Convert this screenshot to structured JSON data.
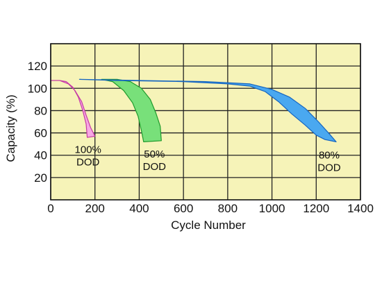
{
  "chart_data": {
    "type": "area",
    "title": "",
    "xlabel": "Cycle Number",
    "ylabel": "Capacity (%)",
    "xlim": [
      0,
      1400
    ],
    "ylim": [
      0,
      140
    ],
    "xticks": [
      0,
      200,
      400,
      600,
      800,
      1000,
      1200,
      1400
    ],
    "yticks": [
      20,
      40,
      60,
      80,
      100,
      120
    ],
    "grid": true,
    "legend": "none",
    "colors": {
      "plot_background": "#f6f3b8",
      "grid": "#222222",
      "frame": "#111111"
    },
    "series": [
      {
        "label_lines": [
          "100%",
          "DOD"
        ],
        "fill": "#f7a7e4",
        "edge": "#c53ba4",
        "upper": [
          [
            0,
            107
          ],
          [
            40,
            107
          ],
          [
            80,
            104
          ],
          [
            110,
            98
          ],
          [
            140,
            88
          ],
          [
            160,
            76
          ],
          [
            180,
            65
          ],
          [
            200,
            57
          ]
        ],
        "lower": [
          [
            200,
            57
          ],
          [
            165,
            56
          ],
          [
            160,
            68
          ],
          [
            145,
            80
          ],
          [
            125,
            92
          ],
          [
            100,
            101
          ],
          [
            70,
            106
          ],
          [
            40,
            107
          ],
          [
            0,
            107
          ]
        ]
      },
      {
        "label_lines": [
          "50%",
          "DOD"
        ],
        "fill": "#78e07a",
        "edge": "#1f9a2c",
        "upper": [
          [
            230,
            108
          ],
          [
            300,
            108
          ],
          [
            360,
            106
          ],
          [
            410,
            100
          ],
          [
            450,
            90
          ],
          [
            475,
            78
          ],
          [
            495,
            66
          ],
          [
            500,
            53
          ]
        ],
        "lower": [
          [
            500,
            53
          ],
          [
            420,
            52
          ],
          [
            410,
            62
          ],
          [
            395,
            75
          ],
          [
            370,
            87
          ],
          [
            330,
            98
          ],
          [
            280,
            106
          ],
          [
            230,
            108
          ]
        ]
      },
      {
        "label_lines": [
          "80%",
          "DOD"
        ],
        "fill": "#4aa8f0",
        "edge": "#1565c0",
        "upper": [
          [
            130,
            108
          ],
          [
            400,
            107
          ],
          [
            700,
            106
          ],
          [
            900,
            104
          ],
          [
            1000,
            99
          ],
          [
            1080,
            92
          ],
          [
            1150,
            82
          ],
          [
            1210,
            70
          ],
          [
            1260,
            59
          ],
          [
            1290,
            52
          ]
        ],
        "lower": [
          [
            1290,
            52
          ],
          [
            1240,
            54
          ],
          [
            1200,
            58
          ],
          [
            1150,
            67
          ],
          [
            1090,
            77
          ],
          [
            1030,
            88
          ],
          [
            970,
            97
          ],
          [
            900,
            102
          ],
          [
            800,
            104
          ],
          [
            600,
            106
          ],
          [
            300,
            107
          ],
          [
            130,
            108
          ]
        ]
      }
    ]
  }
}
